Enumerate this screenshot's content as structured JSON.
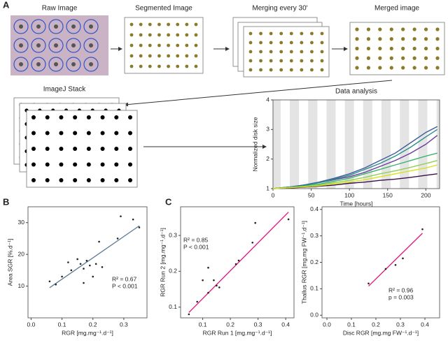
{
  "panels": [
    "A",
    "B",
    "C"
  ],
  "images": {
    "raw": "Raw Image",
    "segmented": "Segmented Image",
    "merging": "Merging every 30'",
    "merged": "Merged image",
    "stack": "ImageJ Stack"
  },
  "chart_data": [
    {
      "type": "line",
      "title": "Data analysis",
      "xlabel": "Time [hours]",
      "ylabel": "Normalized disk size",
      "xlim": [
        0,
        218
      ],
      "ylim": [
        1,
        4
      ],
      "xticks": [
        0,
        50,
        100,
        150,
        200
      ],
      "yticks": [
        1,
        2,
        3,
        4
      ],
      "shaded_intervals": [
        [
          0,
          10
        ],
        [
          22,
          34
        ],
        [
          46,
          58
        ],
        [
          70,
          82
        ],
        [
          94,
          106
        ],
        [
          118,
          130
        ],
        [
          142,
          154
        ],
        [
          166,
          178
        ],
        [
          190,
          202
        ],
        [
          214,
          218
        ]
      ],
      "shade_color": "#e4e4e4",
      "x": [
        0,
        20,
        40,
        60,
        80,
        100,
        120,
        140,
        160,
        180,
        200,
        215
      ],
      "series": [
        {
          "color": "#3b0f4f",
          "values": [
            1,
            1.02,
            1.05,
            1.08,
            1.12,
            1.18,
            1.22,
            1.28,
            1.32,
            1.38,
            1.45,
            1.5
          ]
        },
        {
          "color": "#6a3d9a",
          "values": [
            1,
            1.05,
            1.12,
            1.2,
            1.3,
            1.4,
            1.55,
            1.75,
            1.95,
            2.2,
            2.5,
            2.8
          ]
        },
        {
          "color": "#3e5a9a",
          "values": [
            1,
            1.05,
            1.12,
            1.22,
            1.35,
            1.5,
            1.7,
            1.95,
            2.2,
            2.55,
            2.9,
            3.1
          ]
        },
        {
          "color": "#2a8c8c",
          "values": [
            1,
            1.05,
            1.1,
            1.2,
            1.32,
            1.45,
            1.65,
            1.85,
            2.1,
            2.4,
            2.75,
            3.0
          ]
        },
        {
          "color": "#3cb371",
          "values": [
            1,
            1.04,
            1.08,
            1.15,
            1.25,
            1.35,
            1.5,
            1.65,
            1.8,
            1.95,
            2.1,
            2.2
          ]
        },
        {
          "color": "#8fd14f",
          "values": [
            1,
            1.03,
            1.07,
            1.12,
            1.2,
            1.28,
            1.38,
            1.5,
            1.6,
            1.72,
            1.85,
            1.95
          ]
        },
        {
          "color": "#d8e219",
          "values": [
            1,
            1.03,
            1.06,
            1.1,
            1.16,
            1.22,
            1.3,
            1.4,
            1.5,
            1.6,
            1.7,
            1.8
          ]
        }
      ]
    },
    {
      "type": "scatter",
      "xlabel": "RGR [mg.mg⁻¹.d⁻¹]",
      "ylabel": "Area SGR [%.d⁻¹]",
      "xlim": [
        -0.01,
        0.375
      ],
      "ylim": [
        0,
        35
      ],
      "xticks": [
        {
          "value": 0,
          "label": "0.0"
        },
        0.1,
        0.2,
        0.3
      ],
      "yticks": [
        10,
        20,
        30
      ],
      "color": "#222",
      "annotations": [
        "R² = 0.67",
        "P < 0.001"
      ],
      "x": [
        0.06,
        0.08,
        0.1,
        0.12,
        0.13,
        0.15,
        0.16,
        0.17,
        0.17,
        0.18,
        0.19,
        0.2,
        0.21,
        0.22,
        0.23,
        0.28,
        0.29,
        0.33,
        0.35
      ],
      "y": [
        11.5,
        10.5,
        13,
        17.5,
        15,
        18.5,
        17,
        11,
        15.5,
        18,
        16.5,
        13,
        17,
        24,
        16,
        25,
        32,
        31,
        28.5
      ],
      "fit": {
        "color": "#5b7a99",
        "x": [
          0.06,
          0.35
        ],
        "y": [
          9.5,
          29
        ]
      }
    },
    {
      "type": "scatter",
      "xlabel": "RGR Run 1 [mg.mg⁻¹.d⁻¹]",
      "ylabel": "RGR Run 2 [mg.mg⁻¹.d⁻¹]",
      "xlim": [
        0.02,
        0.43
      ],
      "ylim": [
        0.07,
        0.38
      ],
      "xticks": [
        0.1,
        0.2,
        0.3,
        0.4
      ],
      "yticks": [
        0.1,
        0.2,
        0.3
      ],
      "color": "#222",
      "annotations": [
        "R² = 0.85",
        "P < 0.001"
      ],
      "x": [
        0.05,
        0.08,
        0.1,
        0.12,
        0.12,
        0.14,
        0.15,
        0.16,
        0.22,
        0.23,
        0.28,
        0.29,
        0.41
      ],
      "y": [
        0.08,
        0.115,
        0.175,
        0.14,
        0.21,
        0.175,
        0.16,
        0.155,
        0.22,
        0.23,
        0.28,
        0.335,
        0.345
      ],
      "fit": {
        "color": "#e0147a",
        "x": [
          0.05,
          0.41
        ],
        "y": [
          0.085,
          0.365
        ]
      }
    },
    {
      "type": "scatter",
      "xlabel": "Disc RGR [mg.mg FW⁻¹.d⁻¹]",
      "ylabel": "Thallus RGR [mg.mg FW⁻¹.d⁻¹]",
      "xlim": [
        -0.02,
        0.46
      ],
      "ylim": [
        -0.01,
        0.41
      ],
      "xticks": [
        {
          "value": 0,
          "label": "0.0"
        },
        0.1,
        0.2,
        0.3,
        0.4
      ],
      "yticks": [
        {
          "value": 0,
          "label": "0.0"
        },
        0.1,
        0.2,
        0.3,
        0.4
      ],
      "color": "#222",
      "annotations": [
        "R² = 0.96",
        "p = 0.003"
      ],
      "x": [
        0.17,
        0.24,
        0.28,
        0.31,
        0.39
      ],
      "y": [
        0.12,
        0.175,
        0.19,
        0.215,
        0.325
      ],
      "fit": {
        "color": "#e0147a",
        "x": [
          0.17,
          0.39
        ],
        "y": [
          0.11,
          0.31
        ]
      }
    }
  ]
}
